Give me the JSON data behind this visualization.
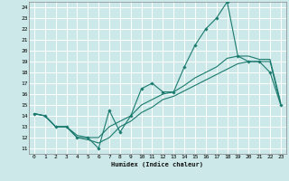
{
  "xlabel": "Humidex (Indice chaleur)",
  "x_ticks": [
    0,
    1,
    2,
    3,
    4,
    5,
    6,
    7,
    8,
    9,
    10,
    11,
    12,
    13,
    14,
    15,
    16,
    17,
    18,
    19,
    20,
    21,
    22,
    23
  ],
  "y_ticks": [
    11,
    12,
    13,
    14,
    15,
    16,
    17,
    18,
    19,
    20,
    21,
    22,
    23,
    24
  ],
  "xlim": [
    -0.5,
    23.5
  ],
  "ylim": [
    10.5,
    24.5
  ],
  "background_color": "#cce8e8",
  "grid_color": "#ffffff",
  "line_color": "#1a7a6e",
  "line1_x": [
    0,
    1,
    2,
    3,
    4,
    5,
    6,
    7,
    8,
    9,
    10,
    11,
    12,
    13,
    14,
    15,
    16,
    17,
    18,
    19,
    20,
    21,
    22,
    23
  ],
  "line1_y": [
    14.2,
    14.0,
    13.0,
    13.0,
    12.0,
    12.0,
    11.0,
    14.5,
    12.5,
    14.0,
    16.5,
    17.0,
    16.2,
    16.2,
    18.5,
    20.5,
    22.0,
    23.0,
    24.5,
    19.5,
    19.0,
    19.0,
    18.0,
    15.0
  ],
  "line2_x": [
    0,
    1,
    2,
    3,
    4,
    5,
    6,
    7,
    8,
    9,
    10,
    11,
    12,
    13,
    14,
    15,
    16,
    17,
    18,
    19,
    20,
    21,
    22,
    23
  ],
  "line2_y": [
    14.2,
    14.0,
    13.0,
    13.0,
    12.2,
    12.0,
    12.0,
    13.0,
    13.5,
    14.0,
    15.0,
    15.5,
    16.0,
    16.2,
    16.8,
    17.5,
    18.0,
    18.5,
    19.3,
    19.5,
    19.5,
    19.2,
    19.2,
    15.2
  ],
  "line3_x": [
    0,
    1,
    2,
    3,
    4,
    5,
    6,
    7,
    8,
    9,
    10,
    11,
    12,
    13,
    14,
    15,
    16,
    17,
    18,
    19,
    20,
    21,
    22,
    23
  ],
  "line3_y": [
    14.2,
    14.0,
    13.0,
    13.0,
    12.0,
    11.8,
    11.5,
    12.0,
    13.0,
    13.5,
    14.3,
    14.8,
    15.5,
    15.8,
    16.3,
    16.8,
    17.3,
    17.8,
    18.3,
    18.8,
    19.0,
    19.0,
    19.0,
    15.0
  ]
}
